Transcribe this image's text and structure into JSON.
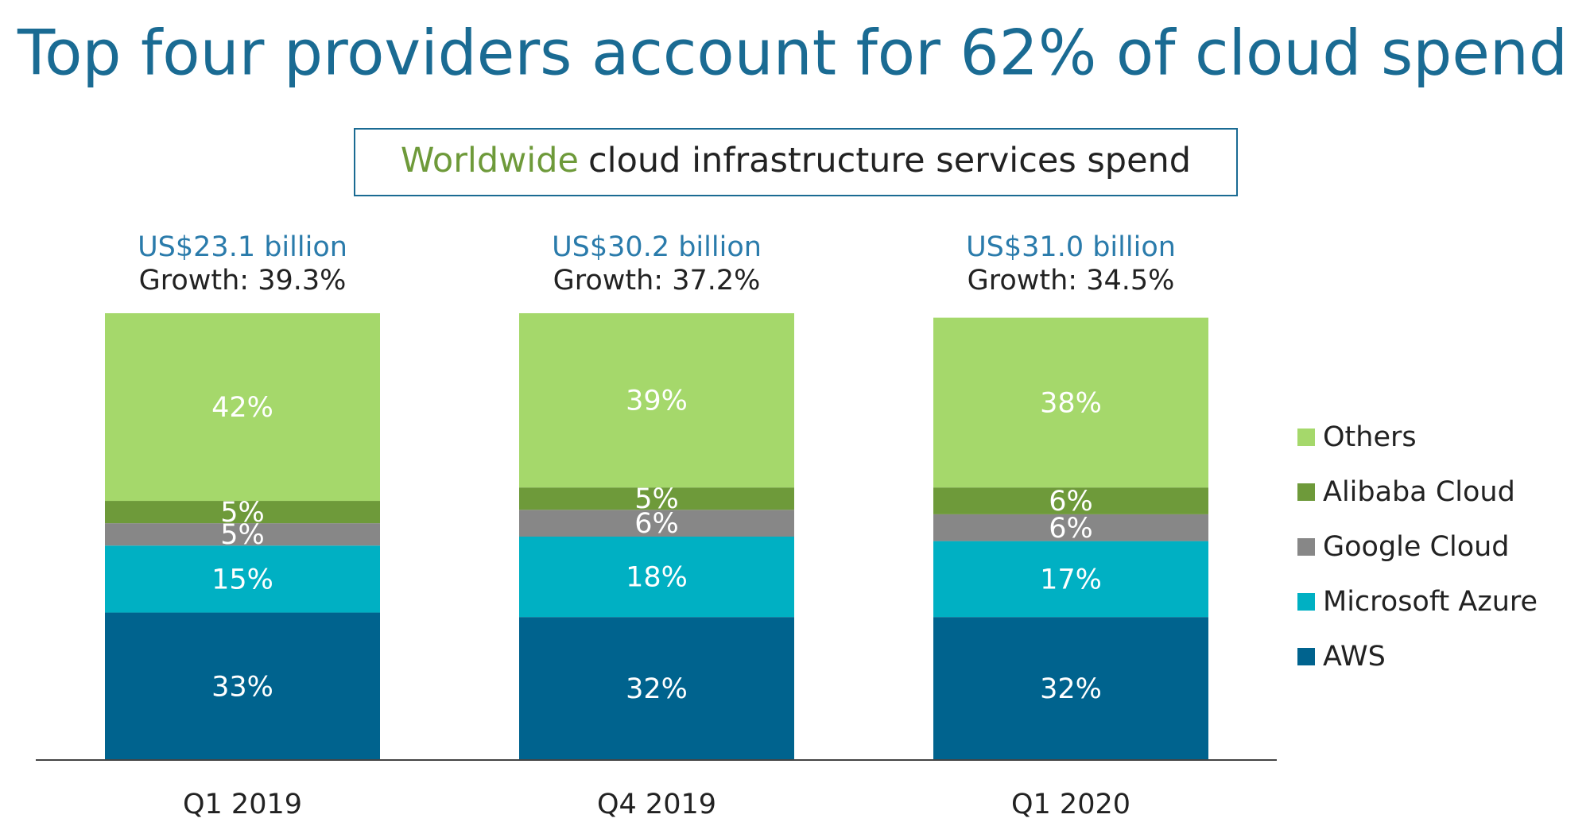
{
  "chart_data": {
    "type": "stacked_bar",
    "title": "Top four providers account for 62% of cloud spend",
    "subtitle": [
      "Worldwide",
      "cloud infrastructure services spend"
    ],
    "categories": [
      "Q1 2019",
      "Q4 2019",
      "Q1 2020"
    ],
    "annotations": [
      {
        "total": "US$23.1 billion",
        "growth": "Growth: 39.3%"
      },
      {
        "total": "US$30.2 billion",
        "growth": "Growth: 37.2%"
      },
      {
        "total": "US$31.0 billion",
        "growth": "Growth: 34.5%"
      }
    ],
    "ylim": [
      0,
      100
    ],
    "legend": "right",
    "series": [
      {
        "name": "AWS",
        "color": "#00638e",
        "values": [
          33,
          32,
          32
        ],
        "value_labels": [
          "33%",
          "32%",
          "32%"
        ]
      },
      {
        "name": "Microsoft Azure",
        "color": "#00b0c3",
        "values": [
          15,
          18,
          17
        ],
        "value_labels": [
          "15%",
          "18%",
          "17%"
        ]
      },
      {
        "name": "Google Cloud",
        "color": "#878787",
        "values": [
          5,
          6,
          6
        ],
        "value_labels": [
          "5%",
          "6%",
          "6%"
        ]
      },
      {
        "name": "Alibaba Cloud",
        "color": "#6e9a3a",
        "values": [
          5,
          5,
          6
        ],
        "value_labels": [
          "5%",
          "5%",
          "6%"
        ]
      },
      {
        "name": "Others",
        "color": "#a5d86b",
        "values": [
          42,
          39,
          38
        ],
        "value_labels": [
          "42%",
          "39%",
          "38%"
        ]
      }
    ]
  }
}
